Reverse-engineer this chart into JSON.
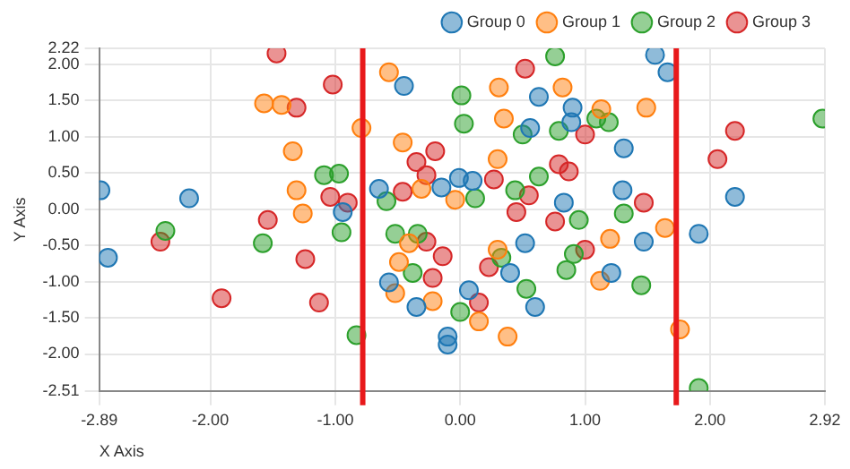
{
  "chart_data": {
    "type": "scatter",
    "xlabel": "X Axis",
    "ylabel": "Y Axis",
    "xlim": [
      -2.89,
      2.92
    ],
    "ylim": [
      -2.51,
      2.22
    ],
    "xticks": [
      -2.89,
      {
        "value": -2,
        "label": "-2.00"
      },
      {
        "value": -1,
        "label": "-1.00"
      },
      {
        "value": 0,
        "label": "0.00"
      },
      {
        "value": 1,
        "label": "1.00"
      },
      {
        "value": 2,
        "label": "2.00"
      },
      2.92
    ],
    "yticks": [
      -2.51,
      {
        "value": -2,
        "label": "-2.00"
      },
      {
        "value": -1.5,
        "label": "-1.50"
      },
      {
        "value": -1,
        "label": "-1.00"
      },
      {
        "value": -0.5,
        "label": "-0.50"
      },
      {
        "value": 0,
        "label": "0.00"
      },
      {
        "value": 0.5,
        "label": "0.50"
      },
      {
        "value": 1,
        "label": "1.00"
      },
      {
        "value": 1.5,
        "label": "1.50"
      },
      {
        "value": 2,
        "label": "2.00"
      },
      2.22
    ],
    "grid": true,
    "legend": "top right",
    "marker": "circle",
    "ref_lines": [
      {
        "axis": "x",
        "value": -0.78,
        "color": "#e8191b"
      },
      {
        "axis": "x",
        "value": 1.73,
        "color": "#e8191b"
      }
    ],
    "series": [
      {
        "name": "Group 0",
        "color": "#1f77b4",
        "x": [
          -2.88,
          -0.45,
          -2.17,
          -0.94,
          -0.65,
          -0.15,
          1.56,
          1.66,
          0.63,
          0.9,
          0.56,
          0.89,
          1.31,
          -0.01,
          0.1,
          1.3,
          0.83,
          2.2,
          1.91,
          -2.82,
          -0.57,
          -0.35,
          -0.1,
          -0.1,
          0.52,
          1.47,
          0.4,
          1.21,
          0.07,
          0.6
        ],
        "values": [
          0.26,
          1.7,
          0.15,
          -0.04,
          0.28,
          0.3,
          2.13,
          1.89,
          1.55,
          1.4,
          1.12,
          1.2,
          0.84,
          0.43,
          0.39,
          0.26,
          0.09,
          0.17,
          -0.34,
          -0.67,
          -1.01,
          -1.35,
          -1.76,
          -1.87,
          -0.47,
          -0.45,
          -0.88,
          -0.88,
          -1.12,
          -1.35
        ]
      },
      {
        "name": "Group 1",
        "color": "#ff7f0e",
        "x": [
          -1.57,
          -1.43,
          -0.79,
          -0.57,
          -1.34,
          -1.31,
          -1.26,
          -0.46,
          -0.31,
          0.31,
          0.82,
          1.13,
          1.49,
          0.35,
          0.3,
          -0.04,
          1.64,
          -0.41,
          -0.49,
          -0.52,
          -0.22,
          1.2,
          0.3,
          1.12,
          0.15,
          0.38,
          1.76
        ],
        "values": [
          1.46,
          1.44,
          1.12,
          1.89,
          0.8,
          0.26,
          -0.06,
          0.92,
          0.28,
          1.68,
          1.68,
          1.38,
          1.4,
          1.25,
          0.69,
          0.13,
          -0.26,
          -0.47,
          -0.73,
          -1.16,
          -1.27,
          -0.41,
          -0.56,
          -0.99,
          -1.55,
          -1.76,
          -1.66
        ]
      },
      {
        "name": "Group 2",
        "color": "#2ca02c",
        "x": [
          -1.09,
          -0.97,
          -0.59,
          0.76,
          0.01,
          0.03,
          0.5,
          0.79,
          1.09,
          1.19,
          2.9,
          0.63,
          0.12,
          0.44,
          1.31,
          0.95,
          -2.36,
          -1.58,
          -0.95,
          -0.83,
          -0.52,
          -0.34,
          -0.38,
          0.91,
          0.33,
          0.85,
          1.45,
          0.53,
          0.0,
          1.91
        ],
        "values": [
          0.47,
          0.49,
          0.11,
          2.11,
          1.57,
          1.18,
          1.03,
          1.08,
          1.25,
          1.2,
          1.25,
          0.45,
          0.15,
          0.26,
          -0.06,
          -0.15,
          -0.3,
          -0.47,
          -0.32,
          -1.74,
          -0.34,
          -0.34,
          -0.88,
          -0.62,
          -0.67,
          -0.84,
          -1.05,
          -1.1,
          -1.42,
          -2.47
        ]
      },
      {
        "name": "Group 3",
        "color": "#d62728",
        "x": [
          -1.47,
          -1.31,
          -1.02,
          -1.04,
          -1.54,
          -0.9,
          -0.35,
          -0.2,
          -0.46,
          -0.27,
          0.52,
          1.0,
          2.2,
          2.06,
          0.79,
          0.87,
          0.27,
          0.55,
          1.47,
          0.45,
          0.76,
          -2.4,
          -1.24,
          -1.91,
          -1.13,
          -0.27,
          -0.14,
          -0.22,
          1.0,
          0.23,
          0.15
        ],
        "values": [
          2.15,
          1.4,
          1.72,
          0.17,
          -0.15,
          0.09,
          0.65,
          0.8,
          0.24,
          0.47,
          1.94,
          1.03,
          1.08,
          0.69,
          0.62,
          0.52,
          0.41,
          0.19,
          0.09,
          -0.04,
          -0.17,
          -0.45,
          -0.69,
          -1.23,
          -1.29,
          -0.45,
          -0.65,
          -0.95,
          -0.56,
          -0.8,
          -1.29
        ]
      }
    ]
  }
}
